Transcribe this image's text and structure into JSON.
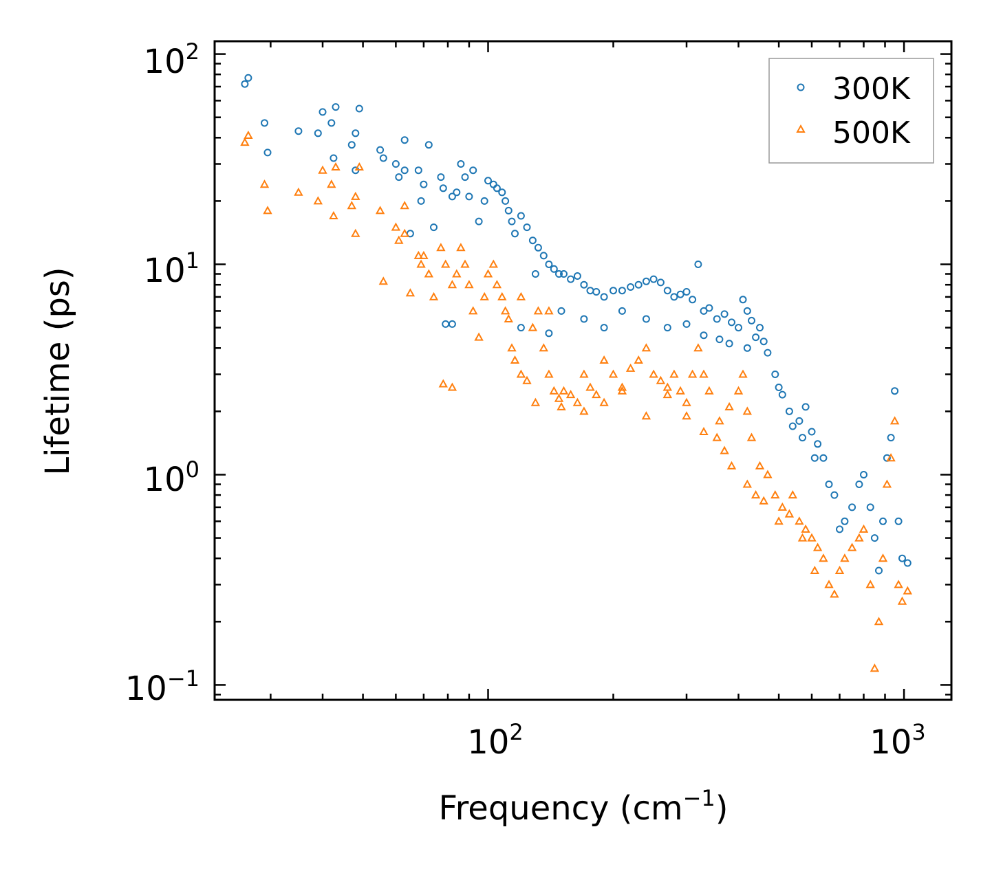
{
  "chart_data": {
    "type": "scatter",
    "xscale": "log",
    "yscale": "log",
    "xlabel": "Frequency (cm",
    "xlabel_sup": "−1",
    "xlabel_close": ")",
    "ylabel": "Lifetime (ps)",
    "xlim": [
      22,
      1300
    ],
    "ylim": [
      0.085,
      115
    ],
    "x_ticks": [
      {
        "base": "10",
        "exp": "2",
        "value": 100
      },
      {
        "base": "10",
        "exp": "3",
        "value": 1000
      }
    ],
    "y_ticks": [
      {
        "base": "10",
        "exp": "−1",
        "value": 0.1
      },
      {
        "base": "10",
        "exp": "0",
        "value": 1
      },
      {
        "base": "10",
        "exp": "1",
        "value": 10
      },
      {
        "base": "10",
        "exp": "2",
        "value": 100
      }
    ],
    "legend_position": "top-right",
    "series": [
      {
        "name": "300K",
        "marker": "circle",
        "color": "#1f77b4",
        "points": [
          [
            26,
            72
          ],
          [
            26.5,
            77
          ],
          [
            29,
            47
          ],
          [
            29.5,
            34
          ],
          [
            35,
            43
          ],
          [
            39,
            42
          ],
          [
            40,
            53
          ],
          [
            42,
            47
          ],
          [
            42.5,
            32
          ],
          [
            43,
            56
          ],
          [
            47,
            37
          ],
          [
            48,
            28
          ],
          [
            48,
            42
          ],
          [
            49,
            55
          ],
          [
            55,
            35
          ],
          [
            56,
            32
          ],
          [
            60,
            30
          ],
          [
            61,
            26
          ],
          [
            63,
            39
          ],
          [
            63,
            28
          ],
          [
            65,
            14
          ],
          [
            68,
            28
          ],
          [
            69,
            20
          ],
          [
            70,
            24
          ],
          [
            72,
            37
          ],
          [
            74,
            15
          ],
          [
            77,
            26
          ],
          [
            78,
            23
          ],
          [
            79,
            5.2
          ],
          [
            82,
            5.2
          ],
          [
            82,
            21
          ],
          [
            84,
            22
          ],
          [
            86,
            30
          ],
          [
            88,
            26
          ],
          [
            90,
            21
          ],
          [
            92,
            28
          ],
          [
            95,
            16
          ],
          [
            98,
            20
          ],
          [
            100,
            25
          ],
          [
            103,
            24
          ],
          [
            105,
            23
          ],
          [
            108,
            22
          ],
          [
            110,
            20
          ],
          [
            112,
            18
          ],
          [
            114,
            16
          ],
          [
            116,
            14
          ],
          [
            120,
            17
          ],
          [
            124,
            15
          ],
          [
            128,
            13
          ],
          [
            132,
            12
          ],
          [
            136,
            11
          ],
          [
            140,
            10
          ],
          [
            144,
            9.5
          ],
          [
            148,
            9
          ],
          [
            152,
            9
          ],
          [
            158,
            8.5
          ],
          [
            164,
            8.8
          ],
          [
            170,
            8
          ],
          [
            176,
            7.5
          ],
          [
            182,
            7.4
          ],
          [
            190,
            7
          ],
          [
            200,
            7.5
          ],
          [
            210,
            7.5
          ],
          [
            220,
            7.8
          ],
          [
            230,
            8
          ],
          [
            240,
            8.3
          ],
          [
            250,
            8.5
          ],
          [
            260,
            8.2
          ],
          [
            270,
            7.5
          ],
          [
            280,
            7
          ],
          [
            290,
            7.2
          ],
          [
            300,
            7.4
          ],
          [
            310,
            6.8
          ],
          [
            320,
            10
          ],
          [
            330,
            6
          ],
          [
            340,
            6.2
          ],
          [
            355,
            5.5
          ],
          [
            370,
            5.8
          ],
          [
            385,
            5.3
          ],
          [
            400,
            5
          ],
          [
            410,
            6.8
          ],
          [
            420,
            6
          ],
          [
            430,
            5.4
          ],
          [
            450,
            5
          ],
          [
            470,
            3.8
          ],
          [
            490,
            3
          ],
          [
            510,
            2.4
          ],
          [
            530,
            2
          ],
          [
            560,
            1.8
          ],
          [
            580,
            2.1
          ],
          [
            600,
            1.6
          ],
          [
            620,
            1.4
          ],
          [
            640,
            1.2
          ],
          [
            660,
            0.9
          ],
          [
            680,
            0.8
          ],
          [
            700,
            0.55
          ],
          [
            720,
            0.6
          ],
          [
            750,
            0.7
          ],
          [
            780,
            0.9
          ],
          [
            800,
            1
          ],
          [
            830,
            0.7
          ],
          [
            850,
            0.5
          ],
          [
            870,
            0.35
          ],
          [
            890,
            0.6
          ],
          [
            910,
            1.2
          ],
          [
            930,
            1.5
          ],
          [
            950,
            2.5
          ],
          [
            970,
            0.6
          ],
          [
            990,
            0.4
          ],
          [
            1020,
            0.38
          ],
          [
            120,
            5
          ],
          [
            140,
            4.7
          ],
          [
            130,
            9
          ],
          [
            150,
            6
          ],
          [
            170,
            5.5
          ],
          [
            190,
            5
          ],
          [
            210,
            6
          ],
          [
            240,
            5.5
          ],
          [
            270,
            5
          ],
          [
            300,
            5.2
          ],
          [
            330,
            4.6
          ],
          [
            360,
            4.4
          ],
          [
            380,
            4.2
          ],
          [
            420,
            4
          ],
          [
            440,
            4.5
          ],
          [
            460,
            4.3
          ],
          [
            500,
            2.6
          ],
          [
            540,
            1.7
          ],
          [
            570,
            1.5
          ],
          [
            610,
            1.2
          ]
        ]
      },
      {
        "name": "500K",
        "marker": "triangle",
        "color": "#ff7f0e",
        "points": [
          [
            26,
            38
          ],
          [
            26.5,
            41
          ],
          [
            29,
            24
          ],
          [
            29.5,
            18
          ],
          [
            35,
            22
          ],
          [
            39,
            20
          ],
          [
            40,
            28
          ],
          [
            42,
            24
          ],
          [
            42.5,
            17
          ],
          [
            43,
            29
          ],
          [
            47,
            19
          ],
          [
            48,
            14
          ],
          [
            48,
            21
          ],
          [
            49,
            29
          ],
          [
            55,
            18
          ],
          [
            56,
            8.3
          ],
          [
            60,
            15
          ],
          [
            61,
            13
          ],
          [
            63,
            19
          ],
          [
            63,
            14
          ],
          [
            65,
            7.3
          ],
          [
            68,
            11
          ],
          [
            69,
            10
          ],
          [
            70,
            11
          ],
          [
            72,
            9
          ],
          [
            74,
            7
          ],
          [
            77,
            12
          ],
          [
            78,
            2.7
          ],
          [
            79,
            10
          ],
          [
            82,
            2.6
          ],
          [
            82,
            8
          ],
          [
            84,
            9
          ],
          [
            86,
            12
          ],
          [
            88,
            10
          ],
          [
            90,
            8
          ],
          [
            92,
            6
          ],
          [
            95,
            4.5
          ],
          [
            98,
            7
          ],
          [
            100,
            9
          ],
          [
            103,
            10
          ],
          [
            105,
            8
          ],
          [
            108,
            7
          ],
          [
            110,
            6
          ],
          [
            112,
            5.5
          ],
          [
            114,
            4
          ],
          [
            116,
            3.5
          ],
          [
            120,
            3
          ],
          [
            124,
            2.8
          ],
          [
            128,
            5
          ],
          [
            132,
            6
          ],
          [
            136,
            4
          ],
          [
            140,
            3
          ],
          [
            144,
            2.5
          ],
          [
            148,
            2.3
          ],
          [
            152,
            2.5
          ],
          [
            158,
            2.4
          ],
          [
            164,
            2.2
          ],
          [
            170,
            3
          ],
          [
            176,
            2.6
          ],
          [
            182,
            2.4
          ],
          [
            190,
            3.5
          ],
          [
            200,
            3
          ],
          [
            210,
            2.6
          ],
          [
            220,
            3.2
          ],
          [
            230,
            3.5
          ],
          [
            240,
            4
          ],
          [
            250,
            3
          ],
          [
            260,
            2.8
          ],
          [
            270,
            2.6
          ],
          [
            280,
            3
          ],
          [
            290,
            2.5
          ],
          [
            300,
            2.2
          ],
          [
            310,
            3
          ],
          [
            320,
            4
          ],
          [
            330,
            3
          ],
          [
            340,
            2.5
          ],
          [
            355,
            1.5
          ],
          [
            370,
            1.3
          ],
          [
            385,
            1.1
          ],
          [
            400,
            2.5
          ],
          [
            410,
            3
          ],
          [
            420,
            2
          ],
          [
            430,
            1.5
          ],
          [
            450,
            1.1
          ],
          [
            470,
            1
          ],
          [
            490,
            0.8
          ],
          [
            510,
            0.7
          ],
          [
            530,
            0.65
          ],
          [
            560,
            0.6
          ],
          [
            580,
            0.55
          ],
          [
            600,
            0.5
          ],
          [
            620,
            0.45
          ],
          [
            640,
            0.4
          ],
          [
            660,
            0.3
          ],
          [
            680,
            0.27
          ],
          [
            700,
            0.35
          ],
          [
            720,
            0.4
          ],
          [
            750,
            0.45
          ],
          [
            780,
            0.5
          ],
          [
            800,
            0.55
          ],
          [
            830,
            0.3
          ],
          [
            850,
            0.12
          ],
          [
            870,
            0.2
          ],
          [
            890,
            0.4
          ],
          [
            910,
            0.9
          ],
          [
            930,
            1.2
          ],
          [
            950,
            1.8
          ],
          [
            970,
            0.3
          ],
          [
            990,
            0.25
          ],
          [
            1020,
            0.28
          ],
          [
            120,
            7
          ],
          [
            140,
            6
          ],
          [
            130,
            2.2
          ],
          [
            150,
            2.1
          ],
          [
            170,
            2
          ],
          [
            190,
            2.2
          ],
          [
            210,
            2.5
          ],
          [
            240,
            1.9
          ],
          [
            270,
            2.4
          ],
          [
            300,
            1.9
          ],
          [
            330,
            1.6
          ],
          [
            360,
            1.8
          ],
          [
            380,
            2.1
          ],
          [
            420,
            0.9
          ],
          [
            440,
            0.8
          ],
          [
            460,
            0.75
          ],
          [
            500,
            0.6
          ],
          [
            540,
            0.8
          ],
          [
            570,
            0.5
          ],
          [
            610,
            0.35
          ]
        ]
      }
    ]
  }
}
